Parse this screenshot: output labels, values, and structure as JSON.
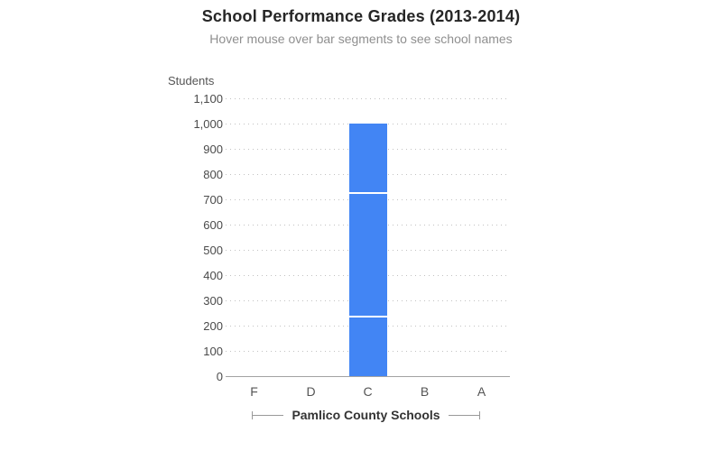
{
  "chart_data": {
    "type": "bar",
    "stacked": true,
    "title": "School Performance Grades (2013-2014)",
    "subtitle": "Hover mouse over bar segments to see school names",
    "xlabel": "Pamlico County Schools",
    "ylabel": "Students",
    "categories": [
      "F",
      "D",
      "C",
      "B",
      "A"
    ],
    "series": [
      {
        "name": "segment-bottom",
        "values": [
          0,
          0,
          235,
          0,
          0
        ]
      },
      {
        "name": "segment-middle",
        "values": [
          0,
          0,
          490,
          0,
          0
        ]
      },
      {
        "name": "segment-top",
        "values": [
          0,
          0,
          275,
          0,
          0
        ]
      }
    ],
    "bar_total_at_C": 1000,
    "ylim": [
      0,
      1100
    ],
    "y_ticks": [
      {
        "value": 0,
        "label": "0"
      },
      {
        "value": 100,
        "label": "100"
      },
      {
        "value": 200,
        "label": "200"
      },
      {
        "value": 300,
        "label": "300"
      },
      {
        "value": 400,
        "label": "400"
      },
      {
        "value": 500,
        "label": "500"
      },
      {
        "value": 600,
        "label": "600"
      },
      {
        "value": 700,
        "label": "700"
      },
      {
        "value": 800,
        "label": "800"
      },
      {
        "value": 900,
        "label": "900"
      },
      {
        "value": 1000,
        "label": "1,000"
      },
      {
        "value": 1100,
        "label": "1,100"
      }
    ],
    "grid": {
      "horizontal": "dotted",
      "vertical": "none"
    },
    "legend": "none",
    "colors": {
      "bar": "#4285f4",
      "segment_divider": "#ffffff",
      "gridline": "#c2c2c2",
      "axis_line": "#a3a3a3",
      "title": "#262626",
      "subtitle": "#8f8f8f",
      "tick_label": "#4a4a4a",
      "axis_title": "#555555"
    }
  }
}
